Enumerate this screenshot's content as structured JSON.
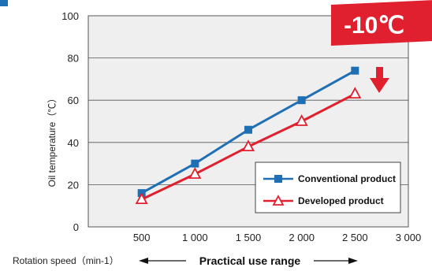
{
  "chart_data": {
    "type": "line",
    "xlabel": "Rotation speed（min-1）",
    "ylabel": "Oil temperature（℃）",
    "x_ticks": [
      "500",
      "1 000",
      "1 500",
      "2 000",
      "2 500",
      "3 000"
    ],
    "y_ticks": [
      "0",
      "20",
      "40",
      "60",
      "80",
      "100"
    ],
    "xlim": [
      0,
      3000
    ],
    "ylim": [
      0,
      100
    ],
    "grid": true,
    "legend_position": "bottom-right",
    "series": [
      {
        "name": "Conventional product",
        "color": "#1f6fb5",
        "marker": "square",
        "x": [
          500,
          1000,
          1500,
          2000,
          2500
        ],
        "y": [
          16,
          30,
          46,
          60,
          74
        ]
      },
      {
        "name": "Developed product",
        "color": "#e0202e",
        "marker": "triangle",
        "x": [
          500,
          1000,
          1500,
          2000,
          2500
        ],
        "y": [
          13,
          25,
          38,
          50,
          63
        ]
      }
    ],
    "annotation": {
      "badge": "-10℃",
      "badge_color": "#e0202e",
      "arrow": "down-arrow-icon",
      "range_label": "Practical use range"
    }
  }
}
